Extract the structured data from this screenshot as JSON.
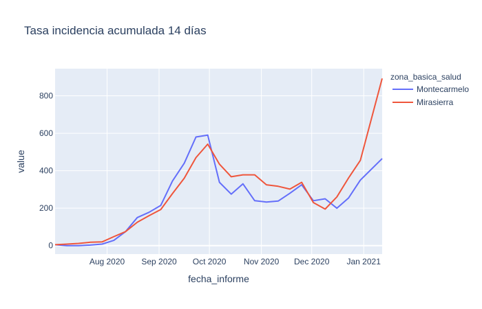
{
  "chart_data": {
    "type": "line",
    "title": "Tasa incidencia acumulada 14 días",
    "xlabel": "fecha_informe",
    "ylabel": "value",
    "x_range": [
      "2020-07-01",
      "2021-01-12"
    ],
    "ylim": [
      -45,
      945
    ],
    "y_ticks": [
      0,
      200,
      400,
      600,
      800
    ],
    "x_ticks": [
      {
        "date": "2020-08-01",
        "label": "Aug 2020"
      },
      {
        "date": "2020-09-01",
        "label": "Sep 2020"
      },
      {
        "date": "2020-10-01",
        "label": "Oct 2020"
      },
      {
        "date": "2020-11-01",
        "label": "Nov 2020"
      },
      {
        "date": "2020-12-01",
        "label": "Dec 2020"
      },
      {
        "date": "2021-01-01",
        "label": "Jan 2021"
      }
    ],
    "grid": true,
    "legend": {
      "title": "zona_basica_salud",
      "position": "top-right"
    },
    "series": [
      {
        "name": "Montecarmelo",
        "color": "#636efa",
        "points": [
          [
            "2020-07-01",
            5
          ],
          [
            "2020-07-08",
            0
          ],
          [
            "2020-07-15",
            0
          ],
          [
            "2020-07-22",
            3
          ],
          [
            "2020-07-29",
            8
          ],
          [
            "2020-08-05",
            28
          ],
          [
            "2020-08-12",
            75
          ],
          [
            "2020-08-19",
            150
          ],
          [
            "2020-08-26",
            178
          ],
          [
            "2020-09-02",
            215
          ],
          [
            "2020-09-09",
            345
          ],
          [
            "2020-09-16",
            440
          ],
          [
            "2020-09-23",
            580
          ],
          [
            "2020-09-30",
            590
          ],
          [
            "2020-10-07",
            338
          ],
          [
            "2020-10-14",
            275
          ],
          [
            "2020-10-21",
            330
          ],
          [
            "2020-10-28",
            240
          ],
          [
            "2020-11-04",
            233
          ],
          [
            "2020-11-11",
            238
          ],
          [
            "2020-11-18",
            280
          ],
          [
            "2020-11-25",
            325
          ],
          [
            "2020-12-02",
            240
          ],
          [
            "2020-12-09",
            250
          ],
          [
            "2020-12-16",
            200
          ],
          [
            "2020-12-23",
            255
          ],
          [
            "2020-12-30",
            350
          ],
          [
            "2021-01-12",
            465
          ]
        ]
      },
      {
        "name": "Mirasierra",
        "color": "#ef553b",
        "points": [
          [
            "2020-07-01",
            5
          ],
          [
            "2020-07-08",
            8
          ],
          [
            "2020-07-15",
            12
          ],
          [
            "2020-07-22",
            18
          ],
          [
            "2020-07-29",
            20
          ],
          [
            "2020-08-05",
            48
          ],
          [
            "2020-08-12",
            75
          ],
          [
            "2020-08-19",
            125
          ],
          [
            "2020-08-26",
            160
          ],
          [
            "2020-09-02",
            193
          ],
          [
            "2020-09-09",
            278
          ],
          [
            "2020-09-16",
            360
          ],
          [
            "2020-09-23",
            470
          ],
          [
            "2020-09-30",
            542
          ],
          [
            "2020-10-07",
            435
          ],
          [
            "2020-10-14",
            368
          ],
          [
            "2020-10-21",
            378
          ],
          [
            "2020-10-28",
            378
          ],
          [
            "2020-11-04",
            325
          ],
          [
            "2020-11-11",
            317
          ],
          [
            "2020-11-18",
            302
          ],
          [
            "2020-11-25",
            338
          ],
          [
            "2020-12-02",
            230
          ],
          [
            "2020-12-09",
            195
          ],
          [
            "2020-12-16",
            260
          ],
          [
            "2020-12-23",
            362
          ],
          [
            "2020-12-30",
            455
          ],
          [
            "2021-01-12",
            893
          ]
        ]
      }
    ]
  }
}
